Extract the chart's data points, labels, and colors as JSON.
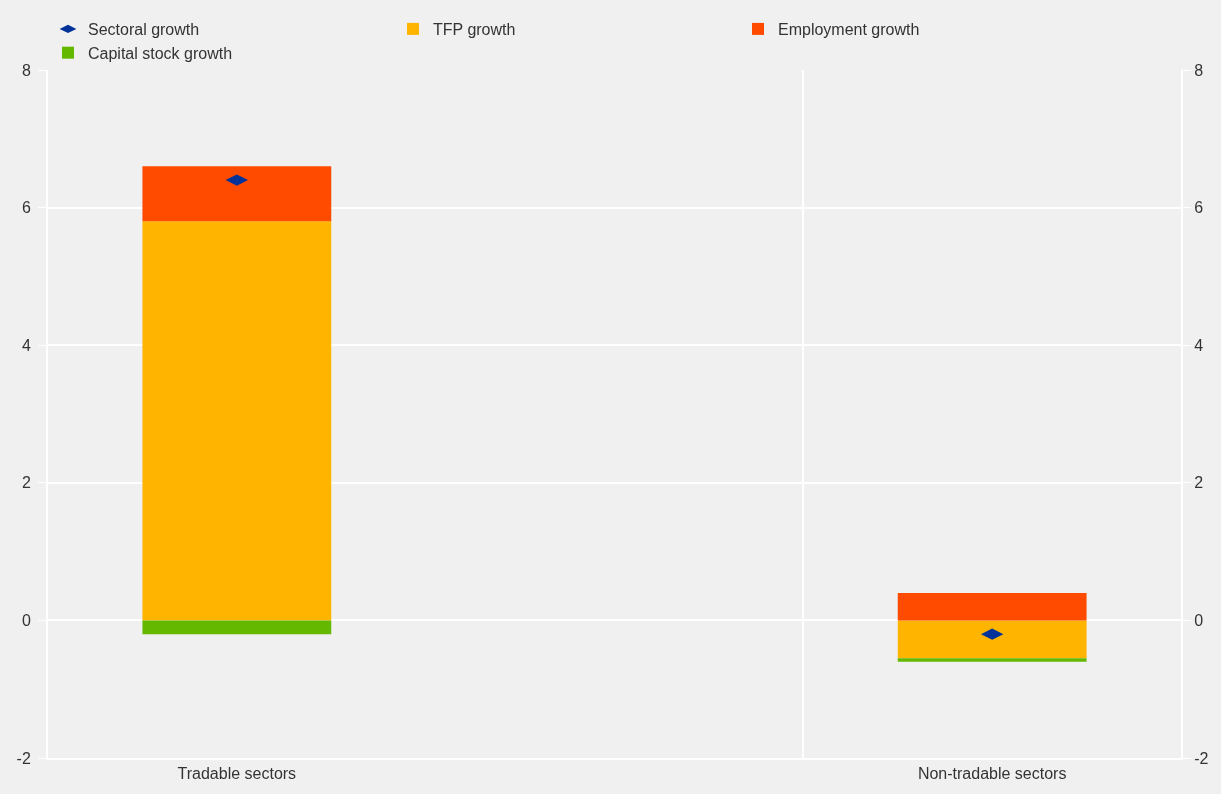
{
  "chart_data": {
    "type": "bar",
    "stacked": true,
    "categories": [
      "Tradable sectors",
      null,
      "Non-tradable sectors"
    ],
    "series": [
      {
        "name": "Sectoral growth",
        "type": "scatter",
        "marker": "diamond",
        "color": "#003299",
        "values": [
          6.4,
          null,
          -0.2
        ]
      },
      {
        "name": "TFP growth",
        "color": "#ffb400",
        "values": [
          5.8,
          null,
          -0.55
        ]
      },
      {
        "name": "Employment growth",
        "color": "#ff4b00",
        "values": [
          0.8,
          null,
          0.4
        ]
      },
      {
        "name": "Capital stock growth",
        "color": "#65b800",
        "values": [
          -0.2,
          null,
          -0.05
        ]
      }
    ],
    "ylim": [
      -2,
      8
    ],
    "yticks": [
      -2,
      0,
      2,
      4,
      6,
      8
    ],
    "y2lim": [
      -2,
      8
    ],
    "y2ticks": [
      -2,
      0,
      2,
      4,
      6,
      8
    ],
    "grid": true,
    "legend": "top"
  }
}
